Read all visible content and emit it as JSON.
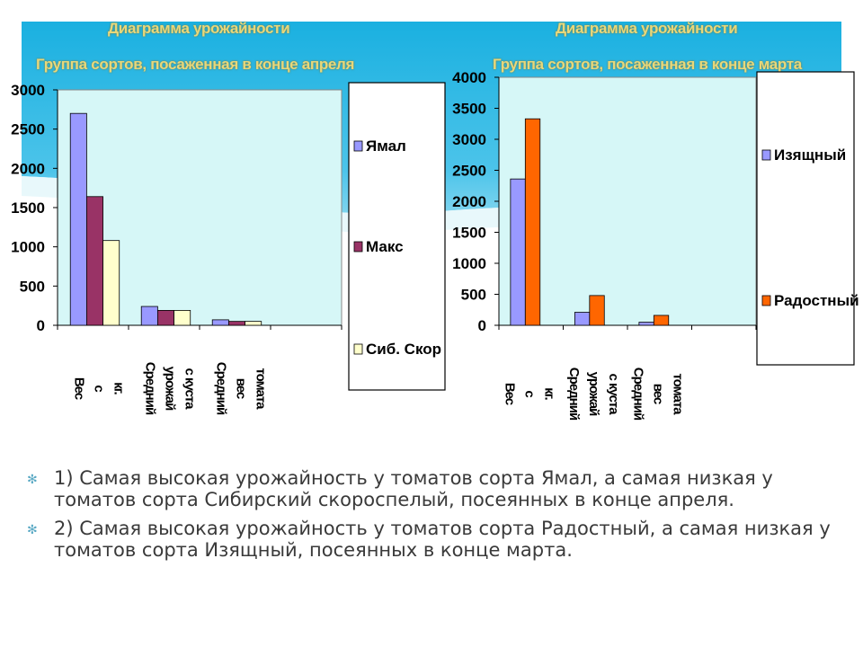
{
  "slide": {
    "bullets": [
      "1) Самая высокая урожайность у томатов сорта Ямал, а самая низкая у томатов сорта Сибирский скороспелый, посеянных в конце апреля.",
      "2) Самая высокая урожайность у томатов сорта Радостный, а самая низкая у томатов сорта Изящный, посеянных в конце марта."
    ],
    "bullet_icon": "star-bullet-icon",
    "colors": {
      "water_top": "#1ab0e0",
      "water_light": "#bfe9f5",
      "plot_bg": "#d6f7f7",
      "title": "#e8d77a",
      "text": "#3a3a3a"
    }
  },
  "chart_data": [
    {
      "type": "bar",
      "title": "Диаграмма урожайности",
      "subtitle": "Группа сортов, посаженная в конце апреля",
      "categories": [
        "Вес\nс\nкг.",
        "Средний\nурожай\nс куста",
        "Средний\nвес\nтомата"
      ],
      "series": [
        {
          "name": "Ямал",
          "values": [
            2700,
            240,
            70
          ],
          "color": "#9999ff"
        },
        {
          "name": "Макс",
          "values": [
            1640,
            190,
            50
          ],
          "color": "#993366"
        },
        {
          "name": "Сиб. Скор",
          "values": [
            1080,
            190,
            50
          ],
          "color": "#ffffcc"
        }
      ],
      "ylim": [
        0,
        3000
      ],
      "yticks": [
        0,
        500,
        1000,
        1500,
        2000,
        2500,
        3000
      ],
      "ytick_labels": [
        "0",
        "500",
        "1000",
        "1500",
        "2000",
        "2500",
        "3000"
      ],
      "n_slots": 4,
      "grid": false,
      "legend": "right"
    },
    {
      "type": "bar",
      "title": "Диаграмма урожайности",
      "subtitle": "Группа сортов, посаженная в конце марта",
      "categories": [
        "Вес\nс\nкг.",
        "Средний\nурожай\nс куста",
        "Средний\nвес\nтомата"
      ],
      "series": [
        {
          "name": "Изящный",
          "values": [
            2360,
            210,
            50
          ],
          "color": "#9999ff"
        },
        {
          "name": "Радостный",
          "values": [
            3330,
            480,
            160
          ],
          "color": "#ff6600"
        }
      ],
      "ylim": [
        0,
        4000
      ],
      "yticks": [
        0,
        500,
        1000,
        1500,
        2000,
        2500,
        3000,
        3500,
        4000
      ],
      "ytick_labels": [
        "0",
        "500",
        "1000",
        "1500",
        "2000",
        "2500",
        "3000",
        "3500",
        "4000"
      ],
      "n_slots": 4,
      "grid": false,
      "legend": "right"
    }
  ]
}
